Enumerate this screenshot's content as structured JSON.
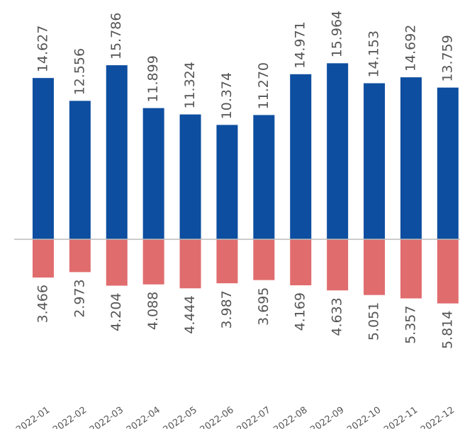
{
  "chart_data": {
    "type": "bar",
    "categories": [
      "2022-01",
      "2022-02",
      "2022-03",
      "2022-04",
      "2022-05",
      "2022-06",
      "2022-07",
      "2022-08",
      "2022-09",
      "2022-10",
      "2022-11",
      "2022-12"
    ],
    "series": [
      {
        "color": "#0d4ea0",
        "values": [
          14.627,
          12.556,
          15.786,
          11.899,
          11.324,
          10.374,
          11.27,
          14.971,
          15.964,
          14.153,
          14.692,
          13.759
        ],
        "value_labels": [
          "14.627",
          "12.556",
          "15.786",
          "11.899",
          "11.324",
          "10.374",
          "11.270",
          "14.971",
          "15.964",
          "14.153",
          "14.692",
          "13.759"
        ]
      },
      {
        "color": "#e06c6e",
        "values": [
          -3.466,
          -2.973,
          -4.204,
          -4.088,
          -4.444,
          -3.987,
          -3.695,
          -4.169,
          -4.633,
          -5.051,
          -5.357,
          -5.814
        ],
        "value_labels": [
          "3.466",
          "2.973",
          "4.204",
          "4.088",
          "4.444",
          "3.987",
          "3.695",
          "4.169",
          "4.633",
          "5.051",
          "5.357",
          "5.814"
        ]
      }
    ],
    "ylim": [
      -17.2,
      21.7
    ]
  }
}
